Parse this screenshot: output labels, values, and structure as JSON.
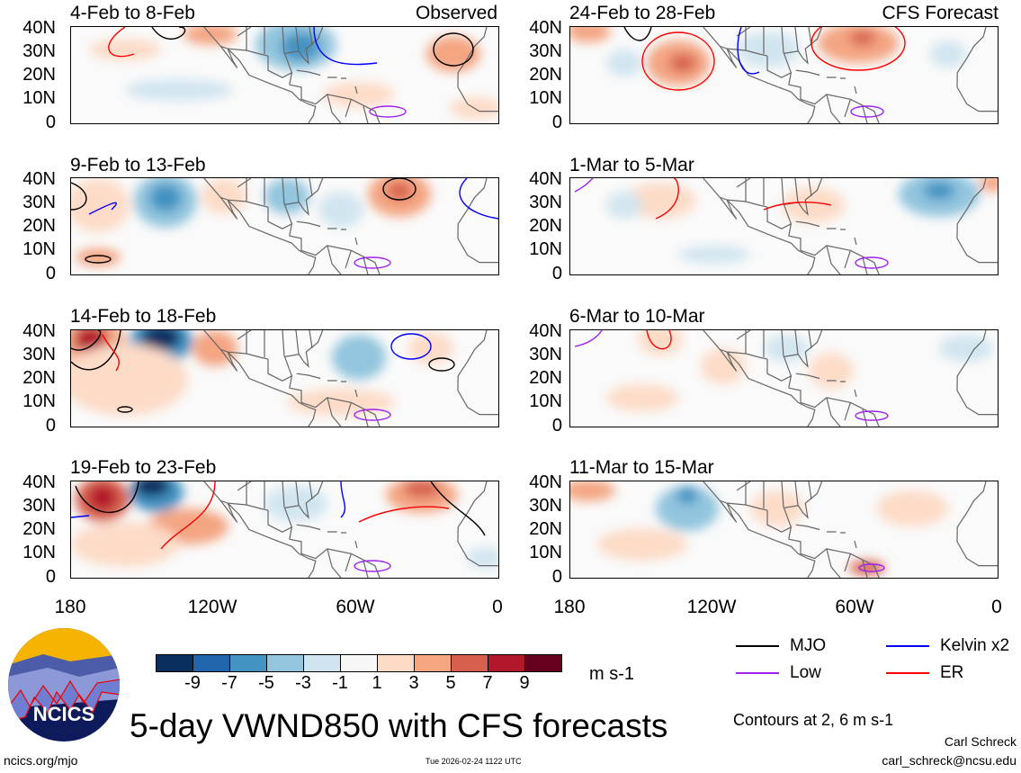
{
  "panels": [
    {
      "title": "4-Feb to 8-Feb",
      "tag": "Observed"
    },
    {
      "title": "24-Feb to 28-Feb",
      "tag": "CFS Forecast"
    },
    {
      "title": "9-Feb to 13-Feb"
    },
    {
      "title": "1-Mar to 5-Mar"
    },
    {
      "title": "14-Feb to 18-Feb"
    },
    {
      "title": "6-Mar to 10-Mar"
    },
    {
      "title": "19-Feb to 23-Feb"
    },
    {
      "title": "11-Mar to 15-Mar"
    }
  ],
  "lat_ticks": [
    "40N",
    "30N",
    "20N",
    "10N",
    "0"
  ],
  "lon_ticks": [
    "180",
    "120W",
    "60W",
    "0"
  ],
  "colorbar": {
    "labels": [
      "-9",
      "-7",
      "-5",
      "-3",
      "-1",
      "1",
      "3",
      "5",
      "7",
      "9"
    ],
    "colors": [
      "#0a2f5f",
      "#2166ac",
      "#4393c3",
      "#92c5de",
      "#d1e5f0",
      "#f7f7f7",
      "#fddbc7",
      "#f4a582",
      "#d6604d",
      "#b2182b",
      "#67001f"
    ],
    "units": "m s-1"
  },
  "legend": [
    {
      "label": "MJO",
      "color": "#000000"
    },
    {
      "label": "Kelvin x2",
      "color": "#0000ff"
    },
    {
      "label": "Low",
      "color": "#a020f0"
    },
    {
      "label": "ER",
      "color": "#ff0000"
    }
  ],
  "contours_note": "Contours at 2, 6 m s-1",
  "main_title": "5-day VWND850 with CFS forecasts",
  "logo_text": "NCICS",
  "footer": {
    "url": "ncics.org/mjo",
    "timestamp": "Tue 2026-02-24 1122 UTC",
    "author": "Carl Schreck",
    "email": "carl_schreck@ncsu.edu"
  }
}
